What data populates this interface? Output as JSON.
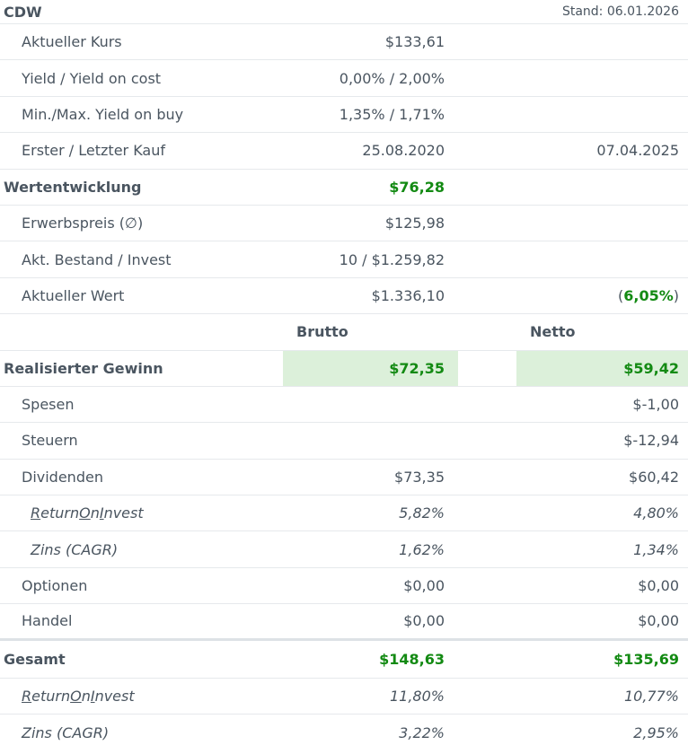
{
  "header": {
    "ticker": "CDW",
    "stand": "Stand: 06.01.2026"
  },
  "info": {
    "kurs": {
      "label": "Aktueller Kurs",
      "value": "$133,61"
    },
    "yield": {
      "label": "Yield / Yield on cost",
      "value": "0,00% / 2,00%"
    },
    "minmax": {
      "label": "Min./Max. Yield on buy",
      "value": "1,35% / 1,71%"
    },
    "kauf": {
      "label": "Erster / Letzter Kauf",
      "first": "25.08.2020",
      "last": "07.04.2025"
    }
  },
  "wert": {
    "label": "Wertentwicklung",
    "value": "$76,28",
    "erwerbspreis": {
      "label": "Erwerbspreis (∅)",
      "value": "$125,98"
    },
    "bestand": {
      "label": "Akt. Bestand / Invest",
      "value": "10 / $1.259,82"
    },
    "aktwert": {
      "label": "Aktueller Wert",
      "value": "$1.336,10",
      "pct_open": "(",
      "pct": "6,05%",
      "pct_close": ")"
    }
  },
  "columns": {
    "brutto": "Brutto",
    "netto": "Netto"
  },
  "realisiert": {
    "label": "Realisierter Gewinn",
    "brutto": "$72,35",
    "netto": "$59,42",
    "spesen": {
      "label": "Spesen",
      "netto": "$-1,00"
    },
    "steuern": {
      "label": "Steuern",
      "netto": "$-12,94"
    },
    "dividenden": {
      "label": "Dividenden",
      "brutto": "$73,35",
      "netto": "$60,42"
    },
    "roi": {
      "label_r": "R",
      "label_a": "eturn ",
      "label_o": "O",
      "label_b": "n ",
      "label_i": "I",
      "label_c": "nvest",
      "brutto": "5,82%",
      "netto": "4,80%"
    },
    "zins": {
      "label": "Zins (CAGR)",
      "brutto": "1,62%",
      "netto": "1,34%"
    },
    "optionen": {
      "label": "Optionen",
      "brutto": "$0,00",
      "netto": "$0,00"
    },
    "handel": {
      "label": "Handel",
      "brutto": "$0,00",
      "netto": "$0,00"
    }
  },
  "gesamt": {
    "label": "Gesamt",
    "brutto": "$148,63",
    "netto": "$135,69",
    "roi": {
      "label_r": "R",
      "label_a": "eturn ",
      "label_o": "O",
      "label_b": "n ",
      "label_i": "I",
      "label_c": "nvest",
      "brutto": "11,80%",
      "netto": "10,77%"
    },
    "zins": {
      "label": "Zins (CAGR)",
      "brutto": "3,22%",
      "netto": "2,95%"
    }
  }
}
